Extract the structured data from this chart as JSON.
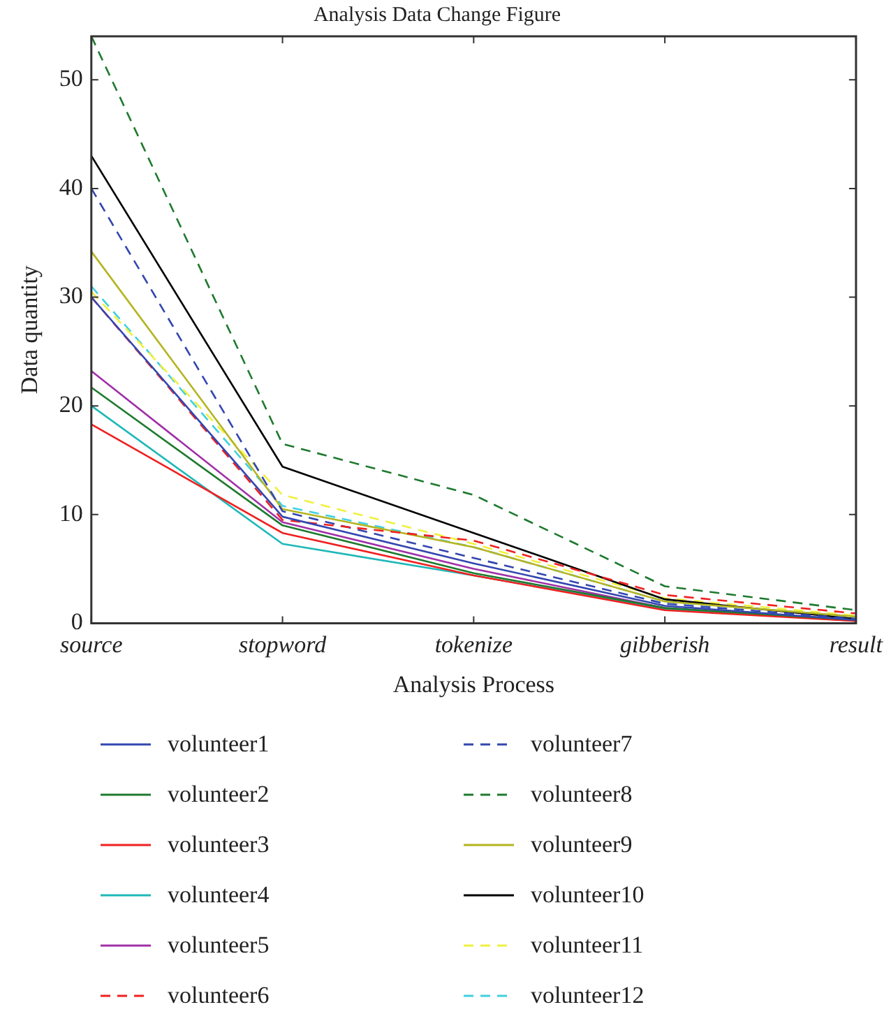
{
  "chart_data": {
    "type": "line",
    "title": "Analysis Data Change Figure",
    "xlabel": "Analysis Process",
    "ylabel": "Data quantity",
    "categories": [
      "source",
      "stopword",
      "tokenize",
      "gibberish",
      "result"
    ],
    "ylim": [
      0,
      54
    ],
    "yticks": [
      0,
      10,
      20,
      30,
      40,
      50
    ],
    "grid": false,
    "legend": "bottom",
    "marker": "none",
    "series": [
      {
        "name": "volunteer1",
        "color": "#3346b0",
        "line_style": "solid",
        "values": [
          30,
          9.8,
          5.5,
          1.6,
          0.3
        ]
      },
      {
        "name": "volunteer2",
        "color": "#1e7a2e",
        "line_style": "solid",
        "values": [
          21.7,
          9.0,
          4.6,
          1.4,
          0.3
        ]
      },
      {
        "name": "volunteer3",
        "color": "#f02020",
        "line_style": "solid",
        "values": [
          18.3,
          8.3,
          4.4,
          1.2,
          0.2
        ]
      },
      {
        "name": "volunteer4",
        "color": "#20b8b8",
        "line_style": "solid",
        "values": [
          20,
          7.3,
          4.4,
          1.3,
          0.3
        ]
      },
      {
        "name": "volunteer5",
        "color": "#a030a8",
        "line_style": "solid",
        "values": [
          23.2,
          9.3,
          5,
          1.4,
          0.2
        ]
      },
      {
        "name": "volunteer6",
        "color": "#f02020",
        "line_style": "dashed",
        "values": [
          30,
          9.5,
          7.6,
          2.6,
          0.9
        ]
      },
      {
        "name": "volunteer7",
        "color": "#3346b0",
        "line_style": "dashed",
        "values": [
          40,
          10.3,
          6,
          1.8,
          0.4
        ]
      },
      {
        "name": "volunteer8",
        "color": "#1e7a2e",
        "line_style": "dashed",
        "values": [
          54,
          16.5,
          11.8,
          3.4,
          1.2
        ]
      },
      {
        "name": "volunteer9",
        "color": "#b4b420",
        "line_style": "solid",
        "values": [
          34.2,
          10.5,
          7,
          2,
          0.6
        ]
      },
      {
        "name": "volunteer10",
        "color": "#000000",
        "line_style": "solid",
        "values": [
          43,
          14.4,
          8.3,
          2.2,
          0.4
        ]
      },
      {
        "name": "volunteer11",
        "color": "#f0f040",
        "line_style": "dashed",
        "values": [
          30.5,
          11.8,
          7.3,
          2.3,
          0.7
        ]
      },
      {
        "name": "volunteer12",
        "color": "#40d0e0",
        "line_style": "dashed",
        "values": [
          31,
          10.8,
          7,
          2,
          0.6
        ]
      }
    ]
  }
}
